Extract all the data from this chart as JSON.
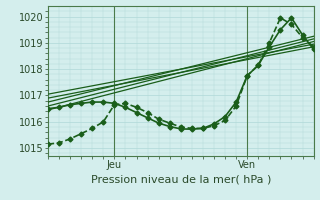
{
  "xlabel": "Pression niveau de la mer( hPa )",
  "bg_color": "#d4eeed",
  "grid_color": "#b0d8d8",
  "line_color": "#1a5e1a",
  "ylim": [
    1014.7,
    1020.4
  ],
  "xlim": [
    0,
    48
  ],
  "xtick_positions": [
    12,
    36
  ],
  "xtick_labels": [
    "Jeu",
    "Ven"
  ],
  "ytick_positions": [
    1015,
    1016,
    1017,
    1018,
    1019,
    1020
  ],
  "vline_positions": [
    12,
    36
  ],
  "straight_lines": [
    {
      "x0": 0,
      "y0": 1016.45,
      "x1": 48,
      "y1": 1019.05
    },
    {
      "x0": 0,
      "y0": 1016.6,
      "x1": 48,
      "y1": 1019.15
    },
    {
      "x0": 0,
      "y0": 1016.75,
      "x1": 48,
      "y1": 1019.25
    },
    {
      "x0": 0,
      "y0": 1016.9,
      "x1": 48,
      "y1": 1018.85
    },
    {
      "x0": 0,
      "y0": 1017.05,
      "x1": 48,
      "y1": 1018.95
    }
  ],
  "curved_line1": {
    "x": [
      0,
      2,
      4,
      6,
      8,
      10,
      12,
      14,
      16,
      18,
      20,
      22,
      24,
      26,
      28,
      30,
      32,
      34,
      36,
      38,
      40,
      42,
      44,
      46,
      48
    ],
    "y": [
      1015.15,
      1015.2,
      1015.35,
      1015.55,
      1015.75,
      1016.0,
      1016.65,
      1016.7,
      1016.55,
      1016.35,
      1016.1,
      1015.95,
      1015.8,
      1015.75,
      1015.75,
      1015.85,
      1016.05,
      1016.6,
      1017.75,
      1018.15,
      1019.0,
      1019.95,
      1019.7,
      1019.2,
      1018.85
    ],
    "linestyle": "--",
    "marker": "D",
    "markersize": 2.5,
    "linewidth": 1.2
  },
  "curved_line2": {
    "x": [
      0,
      2,
      4,
      6,
      8,
      10,
      12,
      14,
      16,
      18,
      20,
      22,
      24,
      26,
      28,
      30,
      32,
      34,
      36,
      38,
      40,
      42,
      44,
      46,
      48
    ],
    "y": [
      1016.5,
      1016.55,
      1016.65,
      1016.7,
      1016.75,
      1016.75,
      1016.7,
      1016.55,
      1016.35,
      1016.15,
      1015.95,
      1015.82,
      1015.73,
      1015.72,
      1015.75,
      1015.92,
      1016.2,
      1016.75,
      1017.75,
      1018.15,
      1018.85,
      1019.5,
      1019.95,
      1019.3,
      1018.75
    ],
    "linestyle": "-",
    "marker": "D",
    "markersize": 2.5,
    "linewidth": 1.2
  }
}
